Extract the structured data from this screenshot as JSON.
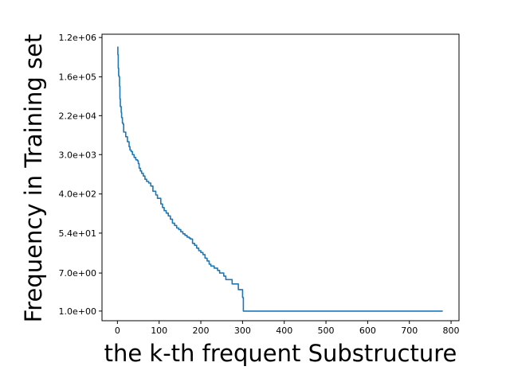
{
  "chart_data": {
    "type": "line",
    "title": "",
    "xlabel": "the k-th frequent Substructure",
    "ylabel": "Frequency in Training set",
    "yscale": "log",
    "xlim": [
      -37,
      819
    ],
    "ylim": [
      0.61,
      1420000.0
    ],
    "grid": false,
    "legend": "none",
    "x_ticks": [
      0,
      100,
      200,
      300,
      400,
      500,
      600,
      700,
      800
    ],
    "x_tick_labels": [
      "0",
      "100",
      "200",
      "300",
      "400",
      "500",
      "600",
      "700",
      "800"
    ],
    "y_ticks": [
      1200000.0,
      160000.0,
      22000.0,
      3000.0,
      400.0,
      54.0,
      7.0,
      1.0
    ],
    "y_tick_labels": [
      "1.2e+06",
      "1.6e+05",
      "2.2e+04",
      "3.0e+03",
      "4.0e+02",
      "5.4e+01",
      "7.0e+00",
      "1.0e+00"
    ],
    "series": [
      {
        "color": "#1f77b4",
        "x": [
          0,
          1,
          2,
          3,
          4,
          5,
          6,
          7,
          9,
          10,
          12,
          14,
          15,
          17,
          20,
          22,
          24,
          26,
          28,
          30,
          33,
          36,
          40,
          44,
          48,
          50,
          52,
          55,
          58,
          62,
          66,
          70,
          75,
          80,
          85,
          88,
          92,
          96,
          100,
          104,
          108,
          112,
          117,
          122,
          127,
          132,
          137,
          142,
          147,
          152,
          157,
          162,
          167,
          172,
          175,
          180,
          185,
          190,
          195,
          200,
          205,
          210,
          215,
          220,
          224,
          228,
          232,
          236,
          240,
          245,
          250,
          255,
          260,
          265,
          270,
          275,
          280,
          285,
          290,
          295,
          298,
          300,
          302,
          310,
          400,
          500,
          600,
          700,
          780
        ],
        "y": [
          740000,
          500000,
          250000,
          170000,
          160000,
          100000,
          52000,
          35000,
          26000,
          20000,
          15000,
          14000,
          9500,
          9500,
          7500,
          7500,
          5800,
          5800,
          4500,
          3800,
          3500,
          3000,
          2600,
          2300,
          2200,
          1900,
          1500,
          1300,
          1150,
          1000,
          850,
          760,
          700,
          600,
          460,
          460,
          380,
          320,
          320,
          240,
          200,
          170,
          150,
          130,
          110,
          90,
          80,
          70,
          65,
          58,
          52,
          48,
          44,
          42,
          40,
          32,
          29,
          25,
          22,
          20,
          18,
          15,
          13,
          11,
          10,
          10,
          9,
          9,
          8,
          7,
          7,
          6,
          5,
          5,
          5,
          4,
          4,
          4,
          3,
          3,
          3,
          2,
          1,
          1,
          1,
          1,
          1,
          1,
          1
        ]
      }
    ]
  }
}
